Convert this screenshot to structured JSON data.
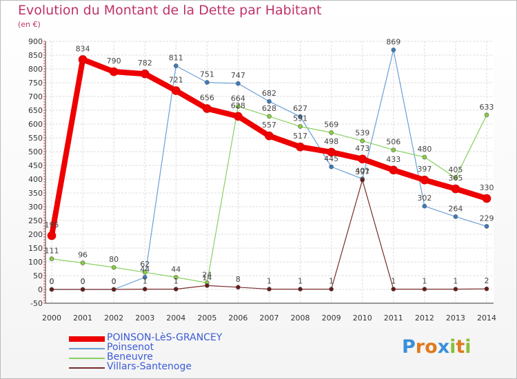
{
  "chart_data": {
    "type": "line",
    "title": "Evolution du Montant de la Dette par Habitant",
    "subtitle": "(en €)",
    "x": [
      "2000",
      "2001",
      "2002",
      "2003",
      "2004",
      "2005",
      "2006",
      "2007",
      "2008",
      "2009",
      "2010",
      "2011",
      "2012",
      "2013",
      "2014"
    ],
    "ylim": [
      -50,
      900
    ],
    "yticks": [
      -50,
      0,
      50,
      100,
      150,
      200,
      250,
      300,
      350,
      400,
      450,
      500,
      550,
      600,
      650,
      700,
      750,
      800,
      850,
      900
    ],
    "grid": true,
    "legend_position": "bottom-left",
    "series": [
      {
        "name": "POINSON-LèS-GRANCEY",
        "color": "#ee0000",
        "values": [
          195,
          834,
          790,
          782,
          721,
          656,
          628,
          557,
          517,
          498,
          473,
          433,
          397,
          365,
          330
        ]
      },
      {
        "name": "Poinsenot",
        "color": "#6a9fd6",
        "values": [
          0,
          0,
          0,
          44,
          811,
          751,
          747,
          682,
          627,
          445,
          401,
          869,
          302,
          264,
          229
        ]
      },
      {
        "name": "Beneuvre",
        "color": "#88d060",
        "values": [
          111,
          96,
          80,
          62,
          44,
          24,
          664,
          628,
          591,
          569,
          539,
          506,
          480,
          405,
          633
        ]
      },
      {
        "name": "Villars-Santenoge",
        "color": "#7a2a2a",
        "values": [
          0,
          0,
          0,
          1,
          1,
          14,
          8,
          1,
          1,
          1,
          397,
          1,
          1,
          1,
          2
        ]
      }
    ]
  },
  "logo": {
    "text": "Proxiti",
    "letters": [
      {
        "ch": "P",
        "color": "#3a8fd8"
      },
      {
        "ch": "r",
        "color": "#e07a20"
      },
      {
        "ch": "o",
        "color": "#e07a20"
      },
      {
        "ch": "x",
        "color": "#3a8fd8"
      },
      {
        "ch": "i",
        "color": "#88c03a"
      },
      {
        "ch": "t",
        "color": "#e07a20"
      },
      {
        "ch": "i",
        "color": "#88c03a"
      }
    ]
  }
}
